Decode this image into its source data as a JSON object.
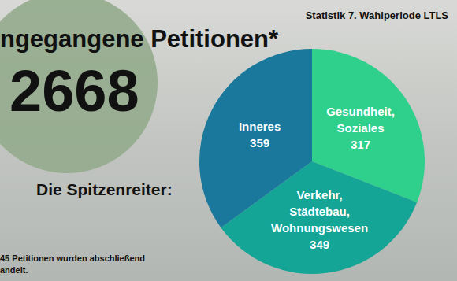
{
  "chart_data": {
    "type": "pie",
    "title": "Statistik 7. Wahlperiode LTLS",
    "categories": [
      "Gesundheit,\nSoziales",
      "Verkehr,\nStädtebau,\nWohnungswesen",
      "Inneres"
    ],
    "values": [
      317,
      349,
      359
    ],
    "colors": [
      "#2fcf8c",
      "#14a596",
      "#1a789c"
    ],
    "data_labels": true,
    "legend": false,
    "annotations": {
      "headline": "ngegangene Petitionen*",
      "total": 2668,
      "subheading": "Die Spitzenreiter:",
      "footnote": [
        "45 Petitionen wurden abschließend",
        "andelt."
      ]
    }
  }
}
